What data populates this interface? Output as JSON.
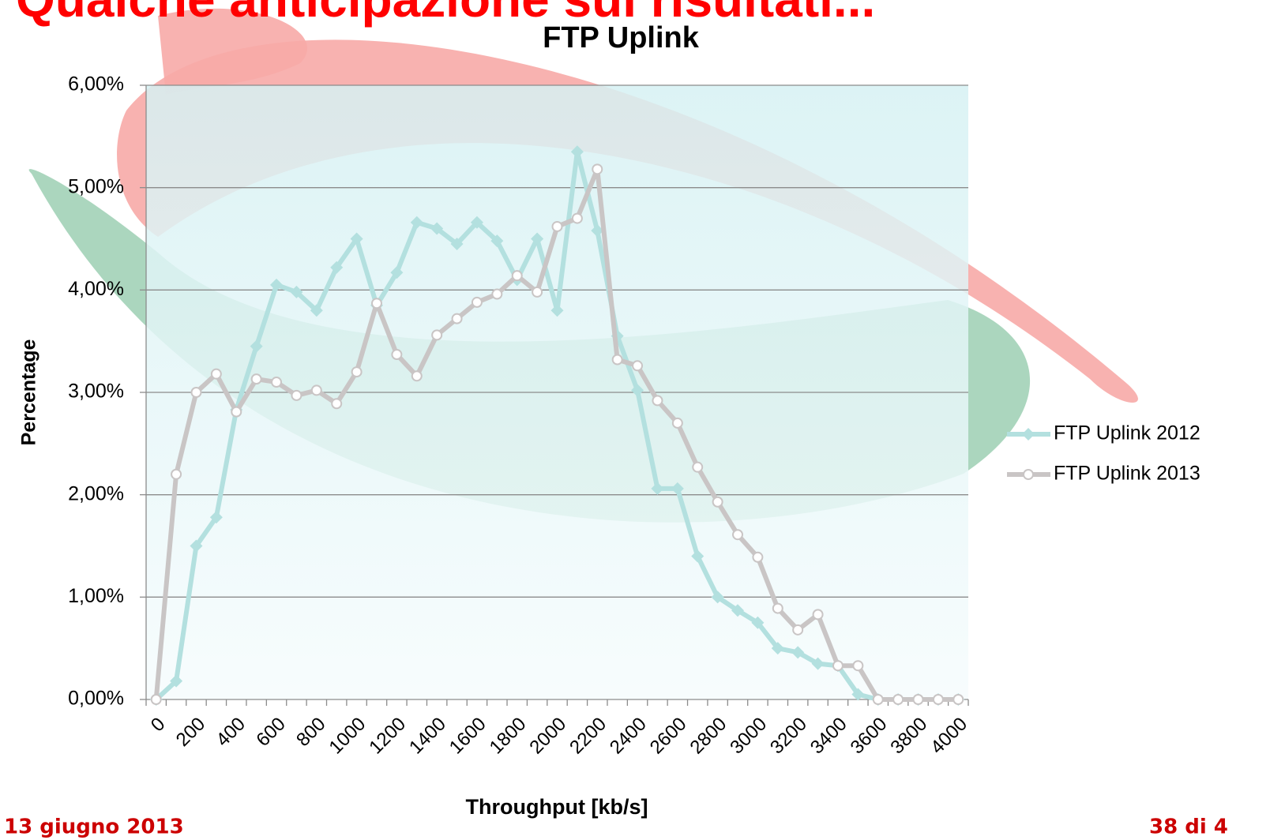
{
  "slide": {
    "title": "Qualche anticipazione sui risultati...",
    "date": "13 giugno 2013",
    "page": "38 di 4"
  },
  "chart_data": {
    "type": "line",
    "title": "FTP Uplink",
    "x_label": "Throughput [kb/s]",
    "y_label": "Percentage",
    "categories": [
      "0",
      null,
      "200",
      null,
      "400",
      null,
      "600",
      null,
      "800",
      null,
      "1000",
      null,
      "1200",
      null,
      "1400",
      null,
      "1600",
      null,
      "1800",
      null,
      "2000",
      null,
      "2200",
      null,
      "2400",
      null,
      "2600",
      null,
      "2800",
      null,
      "3000",
      null,
      "3200",
      null,
      "3400",
      null,
      "3600",
      null,
      "3800",
      null,
      "4000"
    ],
    "series": [
      {
        "name": "FTP Uplink 2012",
        "color": "#b3e0df",
        "marker": "diamond",
        "values": [
          0,
          0.18,
          1.5,
          1.78,
          2.83,
          3.45,
          4.05,
          3.98,
          3.8,
          4.22,
          4.5,
          3.85,
          4.17,
          4.66,
          4.6,
          4.45,
          4.66,
          4.48,
          4.1,
          4.5,
          3.8,
          5.35,
          4.58,
          3.55,
          3.02,
          2.06,
          2.06,
          1.4,
          1.0,
          0.87,
          0.75,
          0.5,
          0.46,
          0.35,
          0.33,
          0.05,
          0,
          0,
          0,
          0,
          0
        ]
      },
      {
        "name": "FTP Uplink 2013",
        "color": "#c9c5c5",
        "marker": "circle",
        "values": [
          0,
          2.2,
          3.0,
          3.18,
          2.81,
          3.13,
          3.1,
          2.97,
          3.02,
          2.89,
          3.2,
          3.87,
          3.37,
          3.16,
          3.56,
          3.72,
          3.88,
          3.96,
          4.14,
          3.98,
          4.62,
          4.7,
          5.18,
          3.32,
          3.26,
          2.92,
          2.7,
          2.27,
          1.93,
          1.61,
          1.39,
          0.89,
          0.68,
          0.83,
          0.33,
          0.33,
          0,
          0,
          0,
          0,
          0
        ]
      }
    ],
    "ylim": [
      0,
      6
    ],
    "yticks": [
      {
        "value": 0,
        "label": "0,00%"
      },
      {
        "value": 1,
        "label": "1,00%"
      },
      {
        "value": 2,
        "label": "2,00%"
      },
      {
        "value": 3,
        "label": "3,00%"
      },
      {
        "value": 4,
        "label": "4,00%"
      },
      {
        "value": 5,
        "label": "5,00%"
      },
      {
        "value": 6,
        "label": "6,00%"
      }
    ],
    "grid": true,
    "legend": "right"
  }
}
